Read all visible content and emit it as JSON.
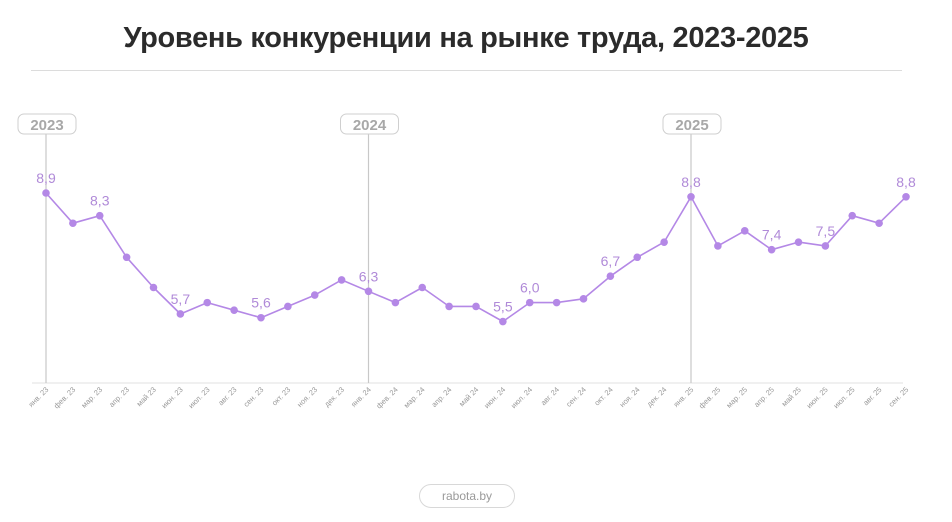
{
  "header": {
    "title": "Уровень конкуренции на рынке труда, 2023-2025"
  },
  "footer": {
    "source": "rabota.by"
  },
  "colors": {
    "line": "#b488e6",
    "label": "#b08ad8",
    "year_line": "#c8c8c8",
    "year_tag_text": "#a8a8a8",
    "year_tag_border": "#cfcfcf",
    "axis": "#e2e2e2",
    "tick_text": "#9a9a9a"
  },
  "chart_data": {
    "type": "line",
    "title": "Уровень конкуренции на рынке труда, 2023-2025",
    "xlabel": "",
    "ylabel": "",
    "grid": false,
    "legend": "none",
    "categories": [
      "янв. 23",
      "фев. 23",
      "мар. 23",
      "апр. 23",
      "май 23",
      "июн. 23",
      "июл. 23",
      "авг. 23",
      "сен. 23",
      "окт. 23",
      "ноя. 23",
      "дек. 23",
      "янв. 24",
      "фев. 24",
      "мар. 24",
      "апр. 24",
      "май 24",
      "июн. 24",
      "июл. 24",
      "авг. 24",
      "сен. 24",
      "окт. 24",
      "ноя. 24",
      "дек. 24",
      "янв. 25",
      "фев. 25",
      "мар. 25",
      "апр. 25",
      "май 25",
      "июн. 25",
      "июл. 25",
      "авг. 25",
      "сен. 25"
    ],
    "series": [
      {
        "name": "Уровень конкуренции",
        "values": [
          8.9,
          8.1,
          8.3,
          7.2,
          6.4,
          5.7,
          6.0,
          5.8,
          5.6,
          5.9,
          6.2,
          6.6,
          6.3,
          6.0,
          6.4,
          5.9,
          5.9,
          5.5,
          6.0,
          6.0,
          6.1,
          6.7,
          7.2,
          7.6,
          8.8,
          7.5,
          7.9,
          7.4,
          7.6,
          7.5,
          8.3,
          8.1,
          8.8
        ]
      }
    ],
    "data_labels": [
      {
        "index": 0,
        "text": "8,9"
      },
      {
        "index": 2,
        "text": "8,3"
      },
      {
        "index": 5,
        "text": "5,7"
      },
      {
        "index": 8,
        "text": "5,6"
      },
      {
        "index": 12,
        "text": "6,3"
      },
      {
        "index": 17,
        "text": "5,5"
      },
      {
        "index": 18,
        "text": "6,0"
      },
      {
        "index": 21,
        "text": "6,7"
      },
      {
        "index": 24,
        "text": "8,8"
      },
      {
        "index": 27,
        "text": "7,4"
      },
      {
        "index": 29,
        "text": "7,5"
      },
      {
        "index": 32,
        "text": "8,8"
      }
    ],
    "year_markers": [
      {
        "index": 0,
        "label": "2023"
      },
      {
        "index": 12,
        "label": "2024"
      },
      {
        "index": 24,
        "label": "2025"
      }
    ]
  }
}
